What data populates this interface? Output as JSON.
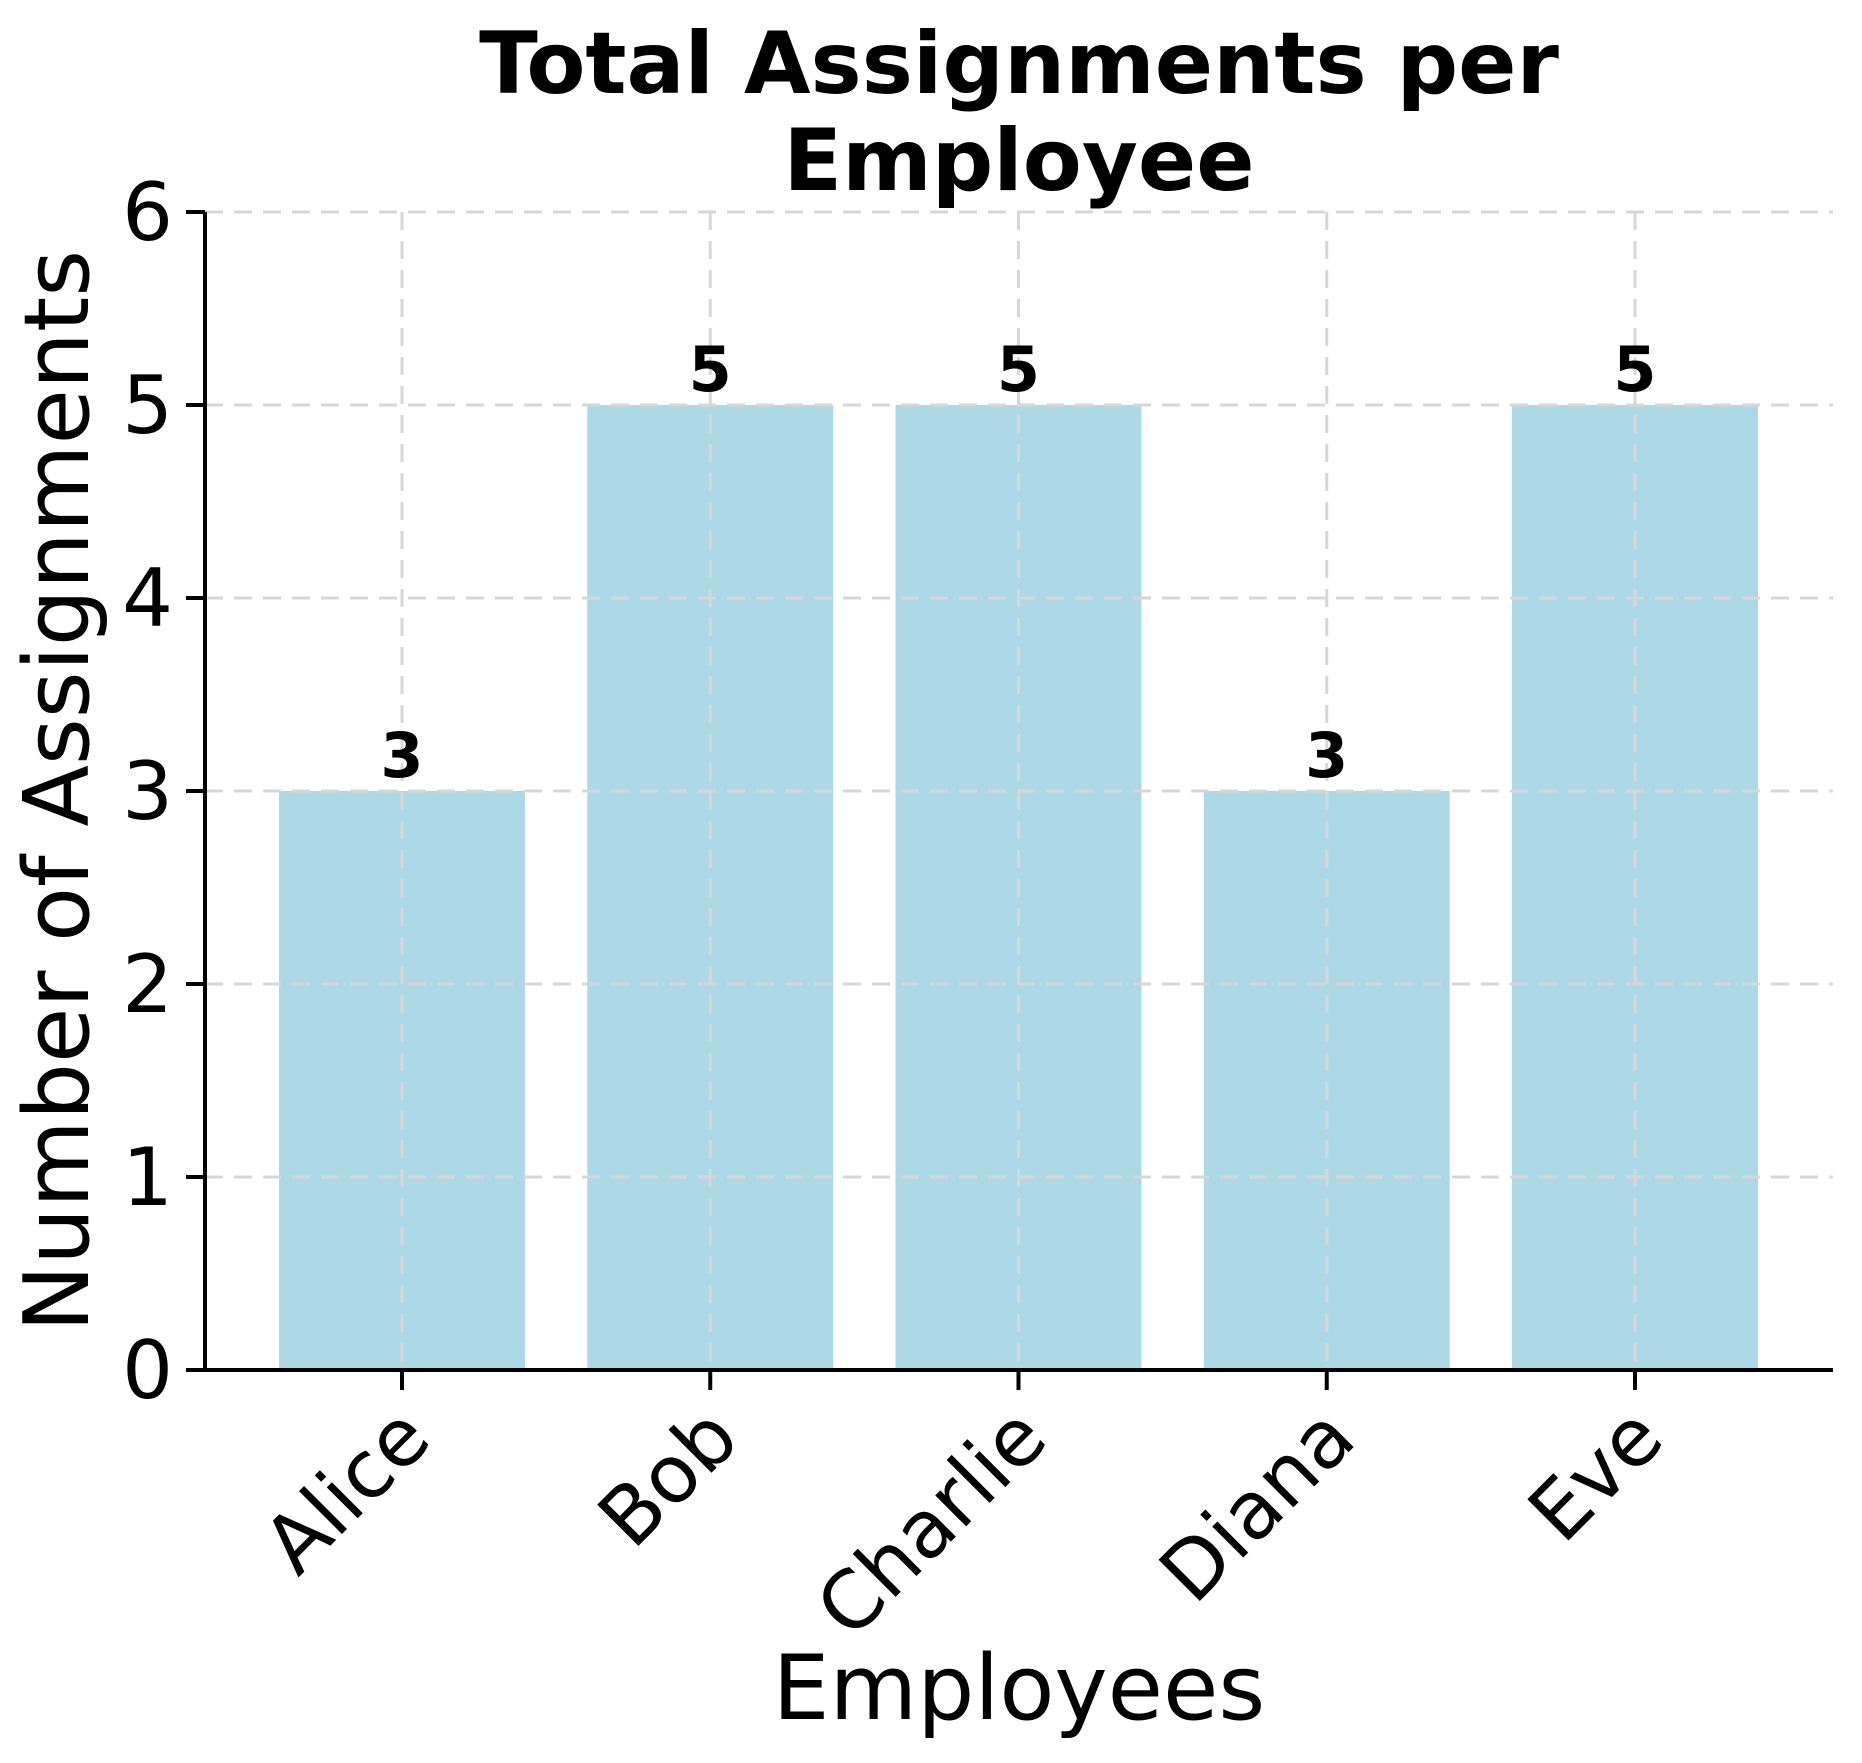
{
  "chart_data": {
    "type": "bar",
    "title": "Total Assignments per Employee",
    "xlabel": "Employees",
    "ylabel": "Number of Assignments",
    "categories": [
      "Alice",
      "Bob",
      "Charlie",
      "Diana",
      "Eve"
    ],
    "values": [
      3,
      5,
      5,
      3,
      5
    ],
    "bar_value_labels": [
      "3",
      "5",
      "5",
      "3",
      "5"
    ],
    "yticks": [
      0,
      1,
      2,
      3,
      4,
      5,
      6
    ],
    "ylim": [
      0,
      6
    ],
    "bar_color": "#ADD8E6",
    "grid": {
      "visible": true,
      "style": "dashed",
      "color": "#d7d7d7",
      "horizontal": true,
      "vertical": true,
      "drawn_over_bars": true
    },
    "axis_color": "#000000",
    "text_color": "#000000",
    "background_color": "#ffffff",
    "legend": "none",
    "x_tick_rotation_deg": 45
  }
}
